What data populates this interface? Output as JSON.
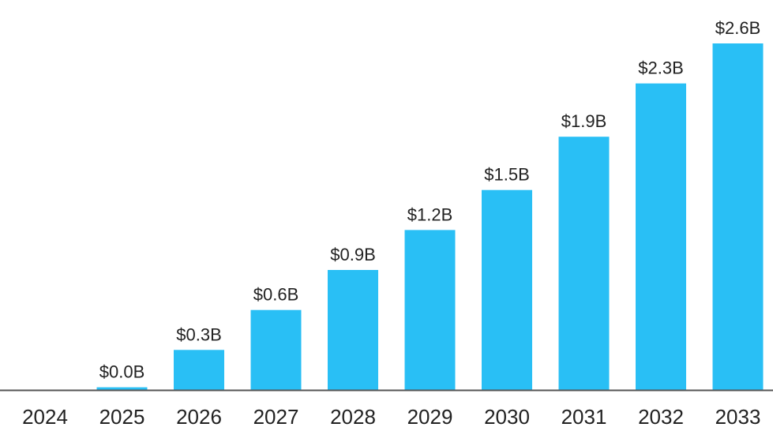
{
  "chart_data": {
    "type": "bar",
    "title": "",
    "xlabel": "",
    "ylabel": "",
    "categories": [
      "2024",
      "2025",
      "2026",
      "2027",
      "2028",
      "2029",
      "2030",
      "2031",
      "2032",
      "2033"
    ],
    "values": [
      0,
      0.02,
      0.3,
      0.6,
      0.9,
      1.2,
      1.5,
      1.9,
      2.3,
      2.6
    ],
    "data_labels": [
      "",
      "$0.0B",
      "$0.3B",
      "$0.6B",
      "$0.9B",
      "$1.2B",
      "$1.5B",
      "$1.9B",
      "$2.3B",
      "$2.6B"
    ],
    "ylim": [
      0,
      2.6
    ],
    "grid": false,
    "legend": "none",
    "y_axis_visible": false,
    "colors": {
      "bar": "#29BFF5",
      "axis": "#555555",
      "text": "#222222"
    }
  }
}
